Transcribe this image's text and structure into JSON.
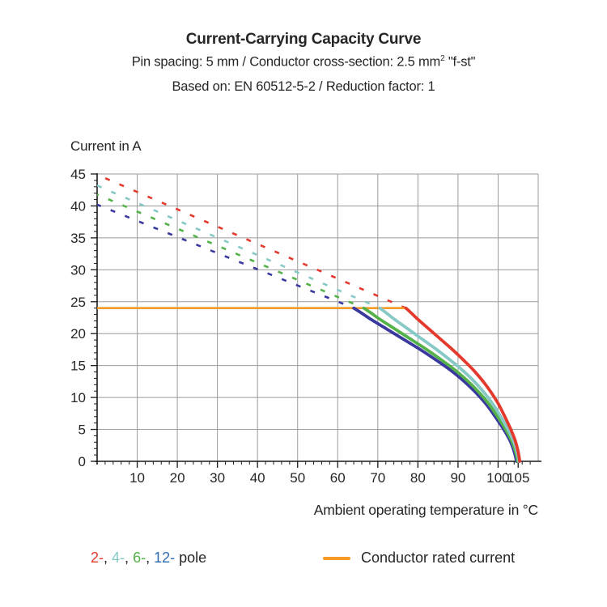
{
  "header": {
    "title": "Current-Carrying Capacity Curve",
    "subtitle1_pre": "Pin spacing: 5 mm / Conductor cross-section: 2.5 mm",
    "subtitle1_sup": "2",
    "subtitle1_post": " \"f-st\"",
    "subtitle2": "Based on: EN 60512-5-2 / Reduction factor: 1"
  },
  "chart_data": {
    "type": "line",
    "title": "Current-Carrying Capacity Curve",
    "xlabel": "Ambient operating temperature in °C",
    "ylabel": "Current in A",
    "xlim": [
      0,
      110
    ],
    "ylim": [
      0,
      45
    ],
    "x_ticks_labeled": [
      10,
      20,
      30,
      40,
      50,
      60,
      70,
      80,
      90,
      100,
      105
    ],
    "x_minor_step": 2,
    "y_ticks_labeled": [
      0,
      5,
      10,
      15,
      20,
      25,
      30,
      35,
      40,
      45
    ],
    "y_minor_step": 1,
    "grid": {
      "x_step": 10,
      "y_step": 5,
      "color": "#9b9b9b"
    },
    "axis_color": "#1a1a1a",
    "rated_current": {
      "value_a": 24,
      "x_start_c": 0,
      "x_end_c": 77,
      "color": "#F49A25",
      "label": "Conductor rated current"
    },
    "derating_master_profile": {
      "u": [
        0,
        0.05,
        0.1,
        0.2,
        0.3,
        0.4,
        0.5,
        0.6,
        0.7,
        0.8,
        0.87,
        0.92,
        0.96,
        0.985,
        1
      ],
      "f": [
        1,
        0.966,
        0.93,
        0.865,
        0.8,
        0.735,
        0.665,
        0.59,
        0.5,
        0.39,
        0.29,
        0.21,
        0.135,
        0.065,
        0
      ]
    },
    "series": [
      {
        "name": "12-pole",
        "color": "#39399E",
        "current_at_0c_a": 40.2,
        "knee_temp_c": 64.0,
        "zero_current_temp_c": 104.6,
        "dash_offset": 1
      },
      {
        "name": "6-pole",
        "color": "#55B24A",
        "current_at_0c_a": 41.8,
        "knee_temp_c": 66.5,
        "zero_current_temp_c": 104.9,
        "dash_offset": 4
      },
      {
        "name": "4-pole",
        "color": "#87C9C6",
        "current_at_0c_a": 43.2,
        "knee_temp_c": 70.5,
        "zero_current_temp_c": 105.2,
        "dash_offset": 0
      },
      {
        "name": "2-pole",
        "color": "#E43A2E",
        "current_at_0c_a": 44.9,
        "knee_temp_c": 77.0,
        "zero_current_temp_c": 105.4,
        "dash_offset": 8
      }
    ],
    "legend_position": "bottom"
  },
  "legend": {
    "pole_tokens": [
      {
        "text": "2-",
        "color": "#E43A2E"
      },
      {
        "text": ", ",
        "color": "#262626"
      },
      {
        "text": "4-",
        "color": "#87C9C6"
      },
      {
        "text": ", ",
        "color": "#262626"
      },
      {
        "text": "6-",
        "color": "#55B24A"
      },
      {
        "text": ", ",
        "color": "#262626"
      },
      {
        "text": "12-",
        "color": "#2F6BB3"
      },
      {
        "text": " pole",
        "color": "#262626"
      }
    ],
    "rated_label": "Conductor rated current"
  }
}
